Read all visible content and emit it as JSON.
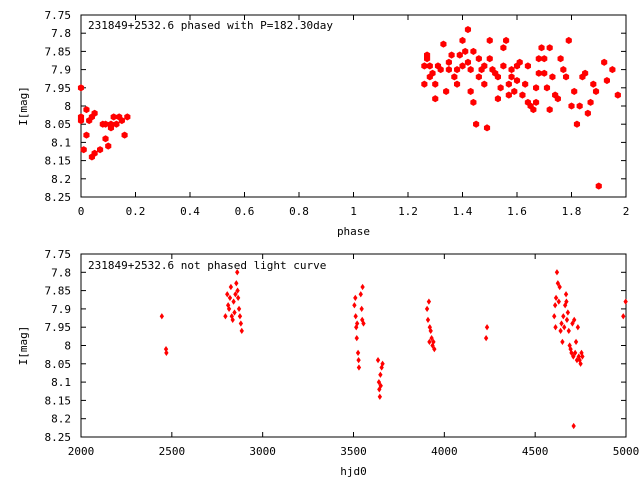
{
  "colors": {
    "points": "#ff0000",
    "axes": "#000000",
    "background": "#ffffff"
  },
  "chart_data": [
    {
      "type": "scatter",
      "title": "231849+2532.6 phased with P=182.30day",
      "xlabel": "phase",
      "ylabel": "I[mag]",
      "xlim": [
        0,
        2
      ],
      "ylim": [
        7.75,
        8.25
      ],
      "y_inverted": true,
      "grid": false,
      "legend": "none",
      "marker": "filled-hexagon",
      "xticks": [
        "0",
        "0.2",
        "0.4",
        "0.6",
        "0.8",
        "1",
        "1.2",
        "1.4",
        "1.6",
        "1.8",
        "2"
      ],
      "yticks": [
        "7.75",
        "7.8",
        "7.85",
        "7.9",
        "7.95",
        "8",
        "8.05",
        "8.1",
        "8.15",
        "8.2",
        "8.25"
      ],
      "points": [
        [
          0.0,
          7.95
        ],
        [
          0.0,
          8.03
        ],
        [
          0.0,
          8.04
        ],
        [
          0.01,
          8.12
        ],
        [
          0.02,
          8.01
        ],
        [
          0.02,
          8.08
        ],
        [
          0.03,
          8.04
        ],
        [
          0.04,
          8.14
        ],
        [
          0.04,
          8.03
        ],
        [
          0.05,
          8.13
        ],
        [
          0.05,
          8.02
        ],
        [
          0.07,
          8.12
        ],
        [
          0.08,
          8.05
        ],
        [
          0.09,
          8.05
        ],
        [
          0.09,
          8.09
        ],
        [
          0.1,
          8.11
        ],
        [
          0.11,
          8.05
        ],
        [
          0.11,
          8.06
        ],
        [
          0.12,
          8.03
        ],
        [
          0.13,
          8.05
        ],
        [
          0.14,
          8.03
        ],
        [
          0.15,
          8.04
        ],
        [
          0.16,
          8.08
        ],
        [
          0.17,
          8.03
        ],
        [
          1.26,
          7.89
        ],
        [
          1.26,
          7.94
        ],
        [
          1.27,
          7.86
        ],
        [
          1.27,
          7.87
        ],
        [
          1.28,
          7.89
        ],
        [
          1.28,
          7.92
        ],
        [
          1.29,
          7.91
        ],
        [
          1.3,
          7.94
        ],
        [
          1.3,
          7.98
        ],
        [
          1.31,
          7.89
        ],
        [
          1.32,
          7.9
        ],
        [
          1.33,
          7.83
        ],
        [
          1.34,
          7.96
        ],
        [
          1.35,
          7.88
        ],
        [
          1.35,
          7.9
        ],
        [
          1.36,
          7.86
        ],
        [
          1.37,
          7.92
        ],
        [
          1.38,
          7.94
        ],
        [
          1.38,
          7.9
        ],
        [
          1.39,
          7.86
        ],
        [
          1.4,
          7.82
        ],
        [
          1.4,
          7.89
        ],
        [
          1.41,
          7.85
        ],
        [
          1.42,
          7.79
        ],
        [
          1.42,
          7.88
        ],
        [
          1.43,
          7.9
        ],
        [
          1.43,
          7.96
        ],
        [
          1.44,
          7.85
        ],
        [
          1.44,
          7.99
        ],
        [
          1.45,
          8.05
        ],
        [
          1.46,
          7.87
        ],
        [
          1.46,
          7.92
        ],
        [
          1.47,
          7.9
        ],
        [
          1.48,
          7.89
        ],
        [
          1.48,
          7.94
        ],
        [
          1.49,
          8.06
        ],
        [
          1.5,
          7.82
        ],
        [
          1.5,
          7.87
        ],
        [
          1.51,
          7.9
        ],
        [
          1.52,
          7.91
        ],
        [
          1.53,
          7.92
        ],
        [
          1.53,
          7.98
        ],
        [
          1.54,
          7.95
        ],
        [
          1.55,
          7.84
        ],
        [
          1.55,
          7.89
        ],
        [
          1.56,
          7.82
        ],
        [
          1.57,
          7.97
        ],
        [
          1.57,
          7.94
        ],
        [
          1.58,
          7.9
        ],
        [
          1.58,
          7.92
        ],
        [
          1.59,
          7.96
        ],
        [
          1.6,
          7.89
        ],
        [
          1.6,
          7.93
        ],
        [
          1.61,
          7.88
        ],
        [
          1.62,
          7.97
        ],
        [
          1.63,
          7.94
        ],
        [
          1.64,
          7.89
        ],
        [
          1.64,
          7.99
        ],
        [
          1.65,
          8.0
        ],
        [
          1.66,
          8.01
        ],
        [
          1.67,
          7.95
        ],
        [
          1.67,
          7.99
        ],
        [
          1.68,
          7.87
        ],
        [
          1.68,
          7.91
        ],
        [
          1.69,
          7.84
        ],
        [
          1.7,
          7.91
        ],
        [
          1.7,
          7.87
        ],
        [
          1.71,
          7.95
        ],
        [
          1.72,
          7.84
        ],
        [
          1.72,
          8.01
        ],
        [
          1.73,
          7.92
        ],
        [
          1.74,
          7.97
        ],
        [
          1.75,
          7.98
        ],
        [
          1.76,
          7.87
        ],
        [
          1.77,
          7.9
        ],
        [
          1.78,
          7.92
        ],
        [
          1.79,
          7.82
        ],
        [
          1.8,
          8.0
        ],
        [
          1.81,
          7.96
        ],
        [
          1.82,
          8.05
        ],
        [
          1.83,
          8.0
        ],
        [
          1.84,
          7.92
        ],
        [
          1.85,
          7.91
        ],
        [
          1.86,
          8.02
        ],
        [
          1.87,
          7.99
        ],
        [
          1.88,
          7.94
        ],
        [
          1.89,
          7.96
        ],
        [
          1.9,
          8.22
        ],
        [
          1.92,
          7.88
        ],
        [
          1.93,
          7.93
        ],
        [
          1.95,
          7.9
        ],
        [
          1.97,
          7.97
        ]
      ]
    },
    {
      "type": "scatter",
      "title": "231849+2532.6 not phased light curve",
      "xlabel": "hjd0",
      "ylabel": "I[mag]",
      "xlim": [
        2000,
        5000
      ],
      "ylim": [
        7.75,
        8.25
      ],
      "y_inverted": true,
      "grid": false,
      "legend": "none",
      "marker": "small-diamond",
      "xticks": [
        "2000",
        "2500",
        "3000",
        "3500",
        "4000",
        "4500",
        "5000"
      ],
      "yticks": [
        "7.75",
        "7.8",
        "7.85",
        "7.9",
        "7.95",
        "8",
        "8.05",
        "8.1",
        "8.15",
        "8.2",
        "8.25"
      ],
      "points": [
        [
          2445,
          7.92
        ],
        [
          2468,
          8.01
        ],
        [
          2470,
          8.02
        ],
        [
          2795,
          7.92
        ],
        [
          2805,
          7.86
        ],
        [
          2810,
          7.89
        ],
        [
          2815,
          7.9
        ],
        [
          2820,
          7.87
        ],
        [
          2825,
          7.84
        ],
        [
          2830,
          7.92
        ],
        [
          2835,
          7.93
        ],
        [
          2840,
          7.88
        ],
        [
          2845,
          7.91
        ],
        [
          2850,
          7.86
        ],
        [
          2855,
          7.83
        ],
        [
          2860,
          7.8
        ],
        [
          2862,
          7.85
        ],
        [
          2865,
          7.87
        ],
        [
          2870,
          7.9
        ],
        [
          2875,
          7.92
        ],
        [
          2880,
          7.94
        ],
        [
          2885,
          7.96
        ],
        [
          3505,
          7.89
        ],
        [
          3510,
          7.87
        ],
        [
          3512,
          7.92
        ],
        [
          3515,
          7.95
        ],
        [
          3518,
          7.98
        ],
        [
          3520,
          7.94
        ],
        [
          3525,
          8.02
        ],
        [
          3528,
          8.04
        ],
        [
          3530,
          8.06
        ],
        [
          3540,
          7.86
        ],
        [
          3545,
          7.9
        ],
        [
          3548,
          7.93
        ],
        [
          3550,
          7.84
        ],
        [
          3555,
          7.94
        ],
        [
          3635,
          8.04
        ],
        [
          3640,
          8.1
        ],
        [
          3642,
          8.12
        ],
        [
          3645,
          8.14
        ],
        [
          3648,
          8.08
        ],
        [
          3650,
          8.11
        ],
        [
          3655,
          8.06
        ],
        [
          3660,
          8.05
        ],
        [
          3905,
          7.9
        ],
        [
          3910,
          7.93
        ],
        [
          3915,
          7.88
        ],
        [
          3918,
          7.99
        ],
        [
          3920,
          7.95
        ],
        [
          3925,
          7.96
        ],
        [
          3930,
          7.98
        ],
        [
          3935,
          8.0
        ],
        [
          3940,
          7.99
        ],
        [
          3945,
          8.01
        ],
        [
          4230,
          7.98
        ],
        [
          4235,
          7.95
        ],
        [
          4605,
          7.92
        ],
        [
          4610,
          7.89
        ],
        [
          4612,
          7.95
        ],
        [
          4615,
          7.87
        ],
        [
          4620,
          7.8
        ],
        [
          4625,
          7.83
        ],
        [
          4630,
          7.88
        ],
        [
          4635,
          7.84
        ],
        [
          4640,
          7.96
        ],
        [
          4645,
          7.94
        ],
        [
          4650,
          7.99
        ],
        [
          4655,
          7.92
        ],
        [
          4660,
          7.95
        ],
        [
          4665,
          7.89
        ],
        [
          4670,
          7.86
        ],
        [
          4672,
          7.88
        ],
        [
          4675,
          7.93
        ],
        [
          4680,
          7.91
        ],
        [
          4685,
          7.96
        ],
        [
          4690,
          8.0
        ],
        [
          4695,
          8.01
        ],
        [
          4700,
          8.02
        ],
        [
          4705,
          7.94
        ],
        [
          4710,
          8.03
        ],
        [
          4712,
          8.22
        ],
        [
          4715,
          7.93
        ],
        [
          4720,
          8.02
        ],
        [
          4725,
          7.99
        ],
        [
          4730,
          8.04
        ],
        [
          4735,
          7.95
        ],
        [
          4740,
          8.03
        ],
        [
          4745,
          8.04
        ],
        [
          4750,
          8.05
        ],
        [
          4755,
          8.02
        ],
        [
          4760,
          8.03
        ],
        [
          4985,
          7.92
        ],
        [
          4998,
          7.88
        ]
      ]
    }
  ]
}
